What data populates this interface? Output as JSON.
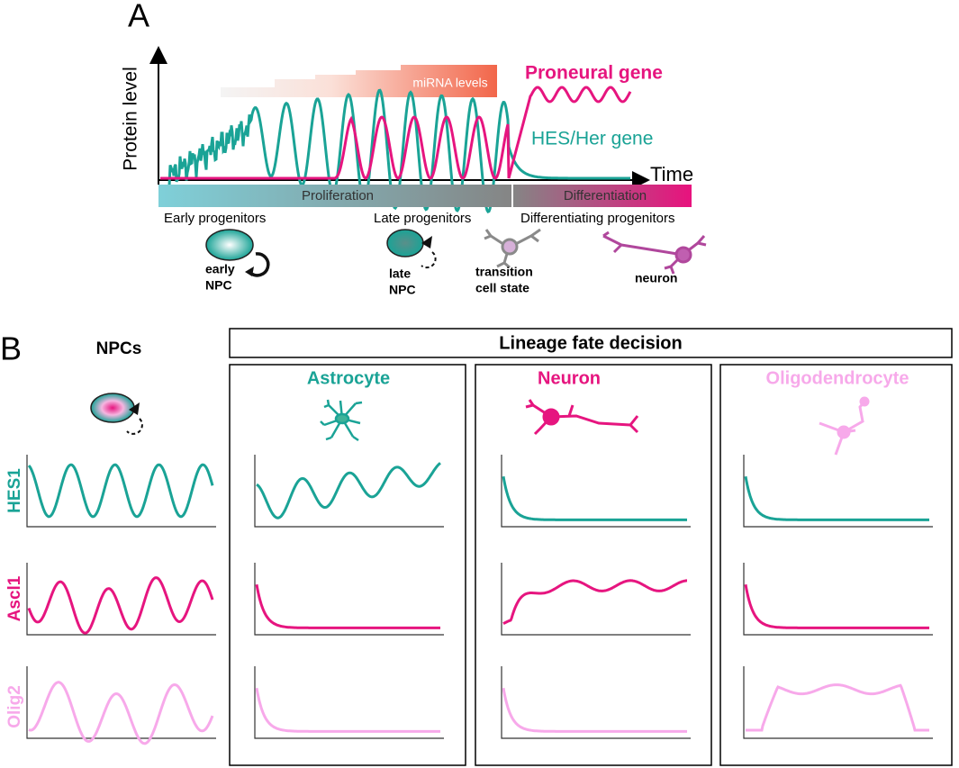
{
  "panel_a": {
    "letter": "A",
    "y_axis_label": "Protein level",
    "x_axis_label": "Time",
    "mirna_label": "miRNA levels",
    "proneural_label": "Proneural gene",
    "hes_label": "HES/Her gene",
    "phase_bar": [
      "Proliferation",
      "Differentiation"
    ],
    "stages": [
      "Early progenitors",
      "Late progenitors",
      "Differentiating progenitors"
    ],
    "cells": [
      [
        "early",
        "NPC"
      ],
      [
        "late",
        "NPC"
      ],
      [
        "transition",
        "cell state"
      ],
      [
        "neuron"
      ]
    ]
  },
  "panel_b": {
    "letter": "B",
    "npc_label": "NPCs",
    "lineage_title": "Lineage fate decision",
    "fates": [
      "Astrocyte",
      "Neuron",
      "Oligodendrocyte"
    ],
    "genes": [
      "HES1",
      "Ascl1",
      "Olig2"
    ]
  }
}
